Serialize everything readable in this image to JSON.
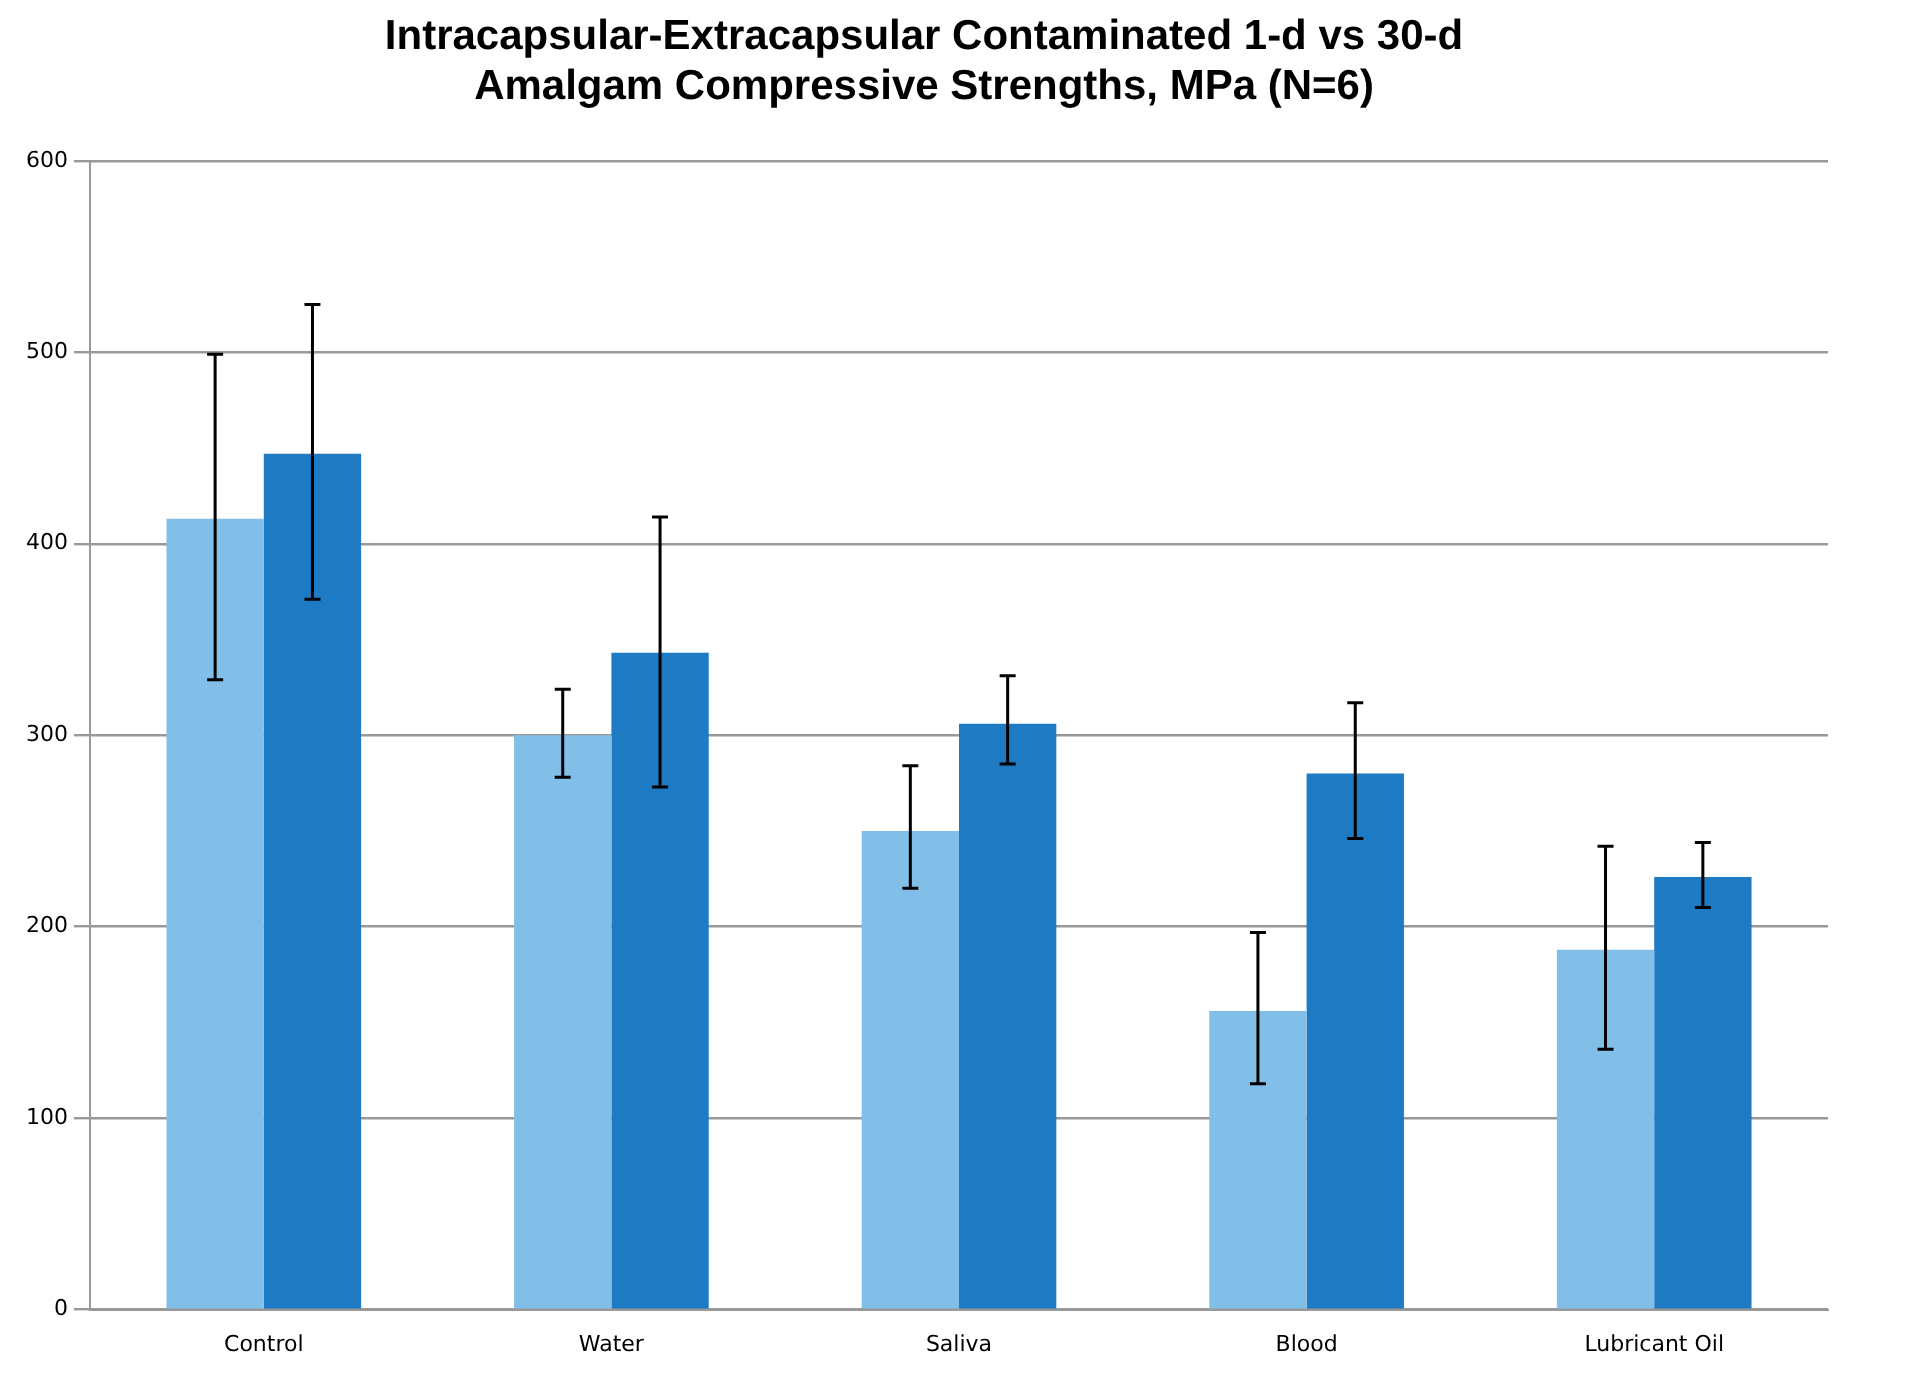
{
  "chart_data": {
    "type": "bar",
    "title": "Intracapsular-Extracapsular Contaminated 1-d vs 30-d\nAmalgam Compressive Strengths, MPa (N=6)",
    "categories": [
      "Control",
      "Water",
      "Saliva",
      "Blood",
      "Lubricant Oil"
    ],
    "series": [
      {
        "color": "#82bfe8",
        "values": [
          413,
          300,
          250,
          156,
          188
        ],
        "errors": [
          [
            329,
            499
          ],
          [
            278,
            324
          ],
          [
            220,
            284
          ],
          [
            118,
            197
          ],
          [
            136,
            242
          ]
        ]
      },
      {
        "color": "#1f7ac4",
        "values": [
          447,
          343,
          306,
          280,
          226
        ],
        "errors": [
          [
            371,
            525
          ],
          [
            273,
            414
          ],
          [
            285,
            331
          ],
          [
            246,
            317
          ],
          [
            210,
            244
          ]
        ]
      }
    ],
    "ylim": [
      0,
      600
    ],
    "yticks": [
      0,
      100,
      200,
      300,
      400,
      500,
      600
    ],
    "grid": "y",
    "legend": false
  }
}
